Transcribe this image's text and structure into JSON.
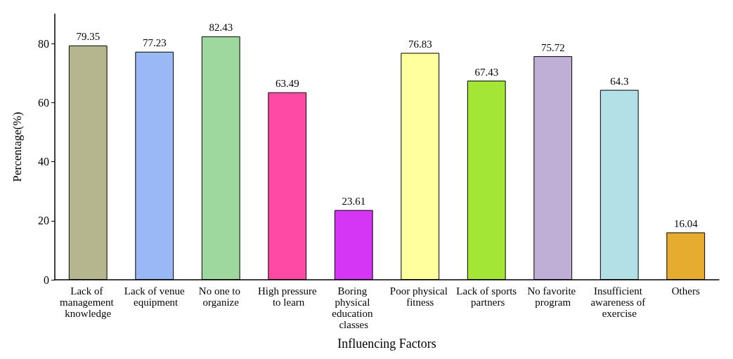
{
  "chart_data": {
    "type": "bar",
    "xlabel": "Influencing Factors",
    "ylabel": "Percentage(%)",
    "categories": [
      "Lack of management knowledge",
      "Lack of venue equipment",
      "No one to organize",
      "High pressure to learn",
      "Boring physical education classes",
      "Poor physical fitness",
      "Lack of sports partners",
      "No favorite program",
      "Insufficient awareness of exercise",
      "Others"
    ],
    "values": [
      79.35,
      77.23,
      82.43,
      63.49,
      23.61,
      76.83,
      67.43,
      75.72,
      64.3,
      16.04
    ],
    "colors": [
      "#b5b58e",
      "#9ab8f5",
      "#9ed89e",
      "#ff4aa5",
      "#d535f5",
      "#ffff9e",
      "#a3e635",
      "#bfaed6",
      "#b3e0e6",
      "#e6ac30"
    ],
    "ylim": [
      0,
      90
    ],
    "yticks": [
      0,
      20,
      40,
      60,
      80
    ],
    "data_labels": true
  }
}
